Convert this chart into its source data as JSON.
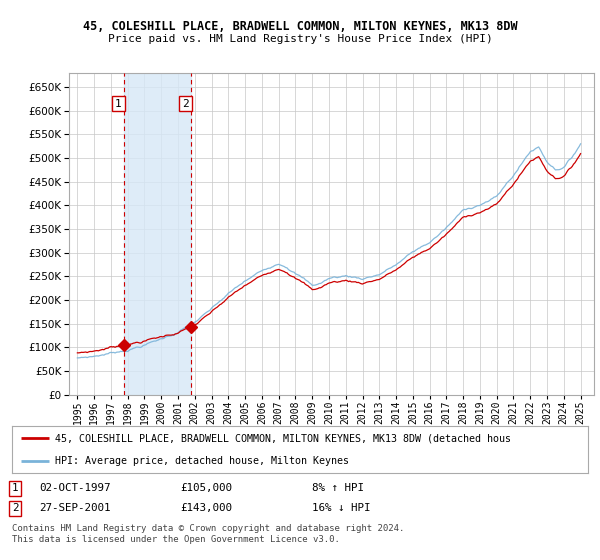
{
  "title1": "45, COLESHILL PLACE, BRADWELL COMMON, MILTON KEYNES, MK13 8DW",
  "title2": "Price paid vs. HM Land Registry's House Price Index (HPI)",
  "sale1_date": "02-OCT-1997",
  "sale1_price": 105000,
  "sale2_date": "27-SEP-2001",
  "sale2_price": 143000,
  "sale1_year": 1997.75,
  "sale2_year": 2001.75,
  "legend_line1": "45, COLESHILL PLACE, BRADWELL COMMON, MILTON KEYNES, MK13 8DW (detached hous",
  "legend_line2": "HPI: Average price, detached house, Milton Keynes",
  "footer1": "Contains HM Land Registry data © Crown copyright and database right 2024.",
  "footer2": "This data is licensed under the Open Government Licence v3.0.",
  "hpi_color": "#7ab3d9",
  "price_color": "#cc0000",
  "vline_color": "#cc0000",
  "shade_color": "#d6e8f7",
  "grid_color": "#c8c8c8",
  "bg_color": "#ffffff",
  "ylim_min": 0,
  "ylim_max": 680000,
  "xmin": 1994.5,
  "xmax": 2025.8,
  "ytick_step": 50000,
  "sale1_row": "1    02-OCT-1997         £105,000      8% ↑ HPI",
  "sale2_row": "2    27-SEP-2001         £143,000      16% ↓ HPI"
}
